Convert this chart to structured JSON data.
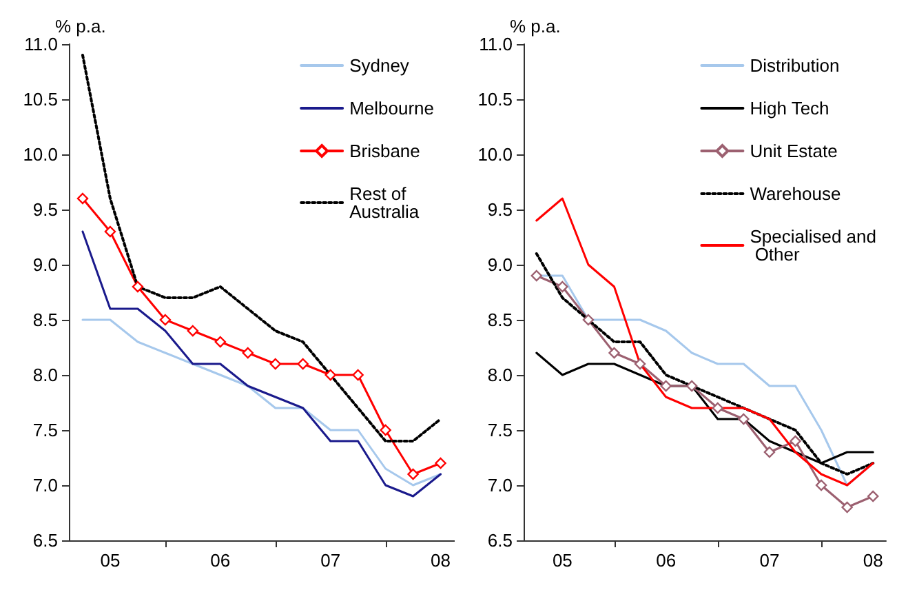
{
  "chart_data": [
    {
      "type": "line",
      "ylabel": "% p.a.",
      "legend": "top right",
      "grid": false,
      "marker": "none",
      "line_style": "solid",
      "categories": [
        null,
        "05",
        null,
        null,
        null,
        "06",
        null,
        null,
        null,
        "07",
        null,
        null,
        null,
        "08"
      ],
      "ylim": [
        6.5,
        11
      ],
      "yticks": [
        {
          "value": 6.5,
          "label": "6.5"
        },
        {
          "value": 7,
          "label": "7.0"
        },
        {
          "value": 7.5,
          "label": "7.5"
        },
        {
          "value": 8,
          "label": "8.0"
        },
        {
          "value": 8.5,
          "label": "8.5"
        },
        {
          "value": 9,
          "label": "9.0"
        },
        {
          "value": 9.5,
          "label": "9.5"
        },
        {
          "value": 10,
          "label": "10.0"
        },
        {
          "value": 10.5,
          "label": "10.5"
        },
        {
          "value": 11,
          "label": "11.0"
        }
      ],
      "series": [
        {
          "name": "Sydney",
          "color": "#a6c8ec",
          "values": [
            8.5,
            8.5,
            8.3,
            8.2,
            8.1,
            8.0,
            7.9,
            7.7,
            7.7,
            7.5,
            7.5,
            7.15,
            7.0,
            7.1
          ]
        },
        {
          "name": "Melbourne",
          "color": "#1a1a8c",
          "values": [
            9.3,
            8.6,
            8.6,
            8.4,
            8.1,
            8.1,
            7.9,
            7.8,
            7.7,
            7.4,
            7.4,
            7.0,
            6.9,
            7.1
          ]
        },
        {
          "name": "Brisbane",
          "color": "#ff0000",
          "marker": "diamond",
          "values": [
            9.6,
            9.3,
            8.8,
            8.5,
            8.4,
            8.3,
            8.2,
            8.1,
            8.1,
            8.0,
            8.0,
            7.5,
            7.1,
            7.2
          ]
        },
        {
          "name": "Rest of Australia",
          "color": "#000000",
          "line_style": "dotted",
          "values": [
            10.9,
            9.6,
            8.8,
            8.7,
            8.7,
            8.8,
            8.6,
            8.4,
            8.3,
            8.0,
            7.7,
            7.4,
            7.4,
            7.6
          ]
        }
      ]
    },
    {
      "type": "line",
      "ylabel": "% p.a.",
      "legend": "top right",
      "grid": false,
      "marker": "none",
      "line_style": "solid",
      "categories": [
        null,
        "05",
        null,
        null,
        null,
        "06",
        null,
        null,
        null,
        "07",
        null,
        null,
        null,
        "08"
      ],
      "ylim": [
        6.5,
        11
      ],
      "yticks": [
        {
          "value": 6.5,
          "label": "6.5"
        },
        {
          "value": 7,
          "label": "7.0"
        },
        {
          "value": 7.5,
          "label": "7.5"
        },
        {
          "value": 8,
          "label": "8.0"
        },
        {
          "value": 8.5,
          "label": "8.5"
        },
        {
          "value": 9,
          "label": "9.0"
        },
        {
          "value": 9.5,
          "label": "9.5"
        },
        {
          "value": 10,
          "label": "10.0"
        },
        {
          "value": 10.5,
          "label": "10.5"
        },
        {
          "value": 11,
          "label": "11.0"
        }
      ],
      "series": [
        {
          "name": "Distribution",
          "color": "#a6c8ec",
          "values": [
            8.9,
            8.9,
            8.5,
            8.5,
            8.5,
            8.4,
            8.2,
            8.1,
            8.1,
            7.9,
            7.9,
            7.5,
            7.0,
            7.2
          ]
        },
        {
          "name": "High Tech",
          "color": "#000000",
          "values": [
            8.2,
            8.0,
            8.1,
            8.1,
            8.0,
            7.9,
            7.9,
            7.6,
            7.6,
            7.4,
            7.3,
            7.2,
            7.3,
            7.3
          ]
        },
        {
          "name": "Unit Estate",
          "color": "#9c6070",
          "marker": "diamond",
          "values": [
            8.9,
            8.8,
            8.5,
            8.2,
            8.1,
            7.9,
            7.9,
            7.7,
            7.6,
            7.3,
            7.4,
            7.0,
            6.8,
            6.9
          ]
        },
        {
          "name": "Warehouse",
          "color": "#000000",
          "line_style": "dotted",
          "values": [
            9.1,
            8.7,
            8.5,
            8.3,
            8.3,
            8.0,
            7.9,
            7.8,
            7.7,
            7.6,
            7.5,
            7.2,
            7.1,
            7.2
          ]
        },
        {
          "name": "Specialised and Other",
          "color": "#ff0000",
          "values": [
            9.4,
            9.6,
            9.0,
            8.8,
            8.1,
            7.8,
            7.7,
            7.7,
            7.7,
            7.6,
            7.3,
            7.1,
            7.0,
            7.2
          ]
        }
      ]
    }
  ]
}
